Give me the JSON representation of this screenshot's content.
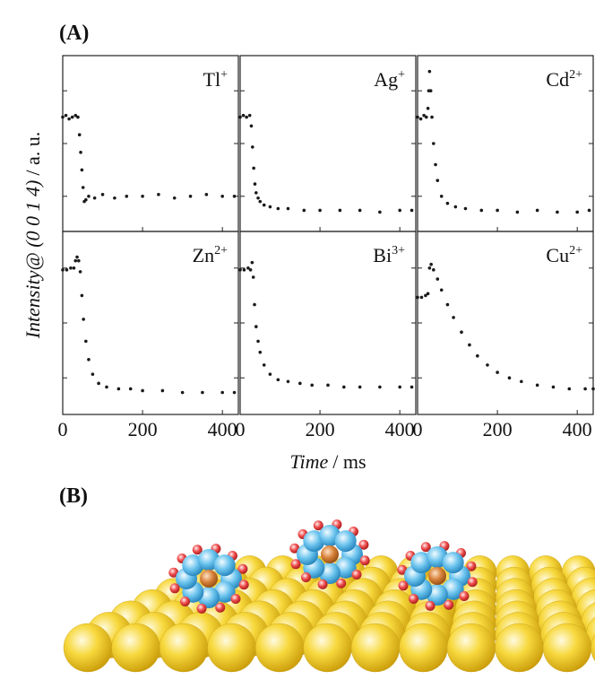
{
  "panel_a_label": "(A)",
  "panel_b_label": "(B)",
  "axes": {
    "ylabel_quantity": "Intensity@ (0 0 1 4)",
    "ylabel_unit": "/ a. u.",
    "xlabel_quantity": "Time",
    "xlabel_unit": "/ ms"
  },
  "chart_data": [
    {
      "type": "scatter",
      "label": {
        "ion": "Tl",
        "charge": "+"
      },
      "color": "#1a1a1a",
      "x": [
        0,
        8,
        16,
        24,
        32,
        38,
        42,
        45,
        48,
        51,
        54,
        58,
        65,
        80,
        100,
        130,
        160,
        200,
        240,
        280,
        320,
        360,
        400,
        430
      ],
      "y": [
        0.65,
        0.66,
        0.64,
        0.65,
        0.66,
        0.65,
        0.55,
        0.45,
        0.35,
        0.25,
        0.17,
        0.18,
        0.2,
        0.19,
        0.21,
        0.19,
        0.2,
        0.2,
        0.21,
        0.19,
        0.2,
        0.21,
        0.2,
        0.2
      ],
      "xlim": [
        0,
        440
      ],
      "xticks": [
        0,
        200,
        400
      ],
      "ylim": [
        0,
        1
      ],
      "yticks": [
        0.2,
        0.5,
        0.8
      ]
    },
    {
      "type": "scatter",
      "label": {
        "ion": "Ag",
        "charge": "+"
      },
      "color": "#1a1a1a",
      "x": [
        0,
        8,
        16,
        24,
        28,
        31,
        34,
        37,
        40,
        45,
        50,
        60,
        75,
        95,
        120,
        160,
        200,
        250,
        300,
        350,
        400,
        430
      ],
      "y": [
        0.65,
        0.66,
        0.65,
        0.66,
        0.6,
        0.48,
        0.36,
        0.27,
        0.22,
        0.19,
        0.17,
        0.15,
        0.14,
        0.13,
        0.13,
        0.12,
        0.12,
        0.12,
        0.12,
        0.11,
        0.12,
        0.12
      ],
      "xlim": [
        0,
        440
      ],
      "xticks": [
        0,
        200,
        400
      ],
      "ylim": [
        0,
        1
      ],
      "yticks": [
        0.2,
        0.5,
        0.8
      ]
    },
    {
      "type": "scatter",
      "label": {
        "ion": "Cd",
        "charge": "2+"
      },
      "color": "#1a1a1a",
      "x": [
        0,
        8,
        16,
        22,
        26,
        28,
        30,
        33,
        36,
        40,
        45,
        50,
        60,
        75,
        95,
        120,
        160,
        200,
        250,
        300,
        350,
        400,
        430
      ],
      "y": [
        0.65,
        0.64,
        0.66,
        0.65,
        0.7,
        0.8,
        0.91,
        0.8,
        0.65,
        0.5,
        0.38,
        0.29,
        0.2,
        0.16,
        0.14,
        0.13,
        0.12,
        0.12,
        0.11,
        0.12,
        0.11,
        0.11,
        0.12
      ],
      "xlim": [
        0,
        440
      ],
      "xticks": [
        0,
        200,
        400
      ],
      "ylim": [
        0,
        1
      ],
      "yticks": [
        0.2,
        0.5,
        0.8
      ]
    },
    {
      "type": "scatter",
      "label": {
        "ion": "Zn",
        "charge": "2+"
      },
      "color": "#1a1a1a",
      "x": [
        0,
        10,
        20,
        28,
        32,
        36,
        40,
        44,
        48,
        52,
        58,
        65,
        75,
        90,
        110,
        140,
        170,
        200,
        250,
        300,
        350,
        400,
        430
      ],
      "y": [
        0.79,
        0.79,
        0.8,
        0.8,
        0.84,
        0.86,
        0.84,
        0.78,
        0.65,
        0.52,
        0.4,
        0.3,
        0.22,
        0.17,
        0.15,
        0.14,
        0.14,
        0.13,
        0.13,
        0.12,
        0.12,
        0.12,
        0.12
      ],
      "xlim": [
        0,
        440
      ],
      "xticks": [
        0,
        200,
        400
      ],
      "ylim": [
        0,
        1
      ],
      "yticks": [
        0.2,
        0.5,
        0.8
      ]
    },
    {
      "type": "scatter",
      "label": {
        "ion": "Bi",
        "charge": "3+"
      },
      "color": "#1a1a1a",
      "x": [
        0,
        10,
        20,
        26,
        30,
        33,
        36,
        40,
        45,
        50,
        60,
        75,
        95,
        120,
        150,
        180,
        220,
        260,
        300,
        350,
        400,
        430
      ],
      "y": [
        0.79,
        0.79,
        0.8,
        0.79,
        0.83,
        0.75,
        0.6,
        0.48,
        0.4,
        0.34,
        0.27,
        0.22,
        0.19,
        0.18,
        0.17,
        0.16,
        0.16,
        0.15,
        0.15,
        0.15,
        0.15,
        0.15
      ],
      "xlim": [
        0,
        440
      ],
      "xticks": [
        0,
        200,
        400
      ],
      "ylim": [
        0,
        1
      ],
      "yticks": [
        0.2,
        0.5,
        0.8
      ]
    },
    {
      "type": "scatter",
      "label": {
        "ion": "Cu",
        "charge": "2+"
      },
      "color": "#1a1a1a",
      "x": [
        0,
        10,
        20,
        26,
        30,
        34,
        40,
        50,
        60,
        75,
        90,
        110,
        130,
        150,
        175,
        200,
        230,
        260,
        300,
        340,
        380,
        420,
        440
      ],
      "y": [
        0.64,
        0.64,
        0.65,
        0.66,
        0.8,
        0.82,
        0.79,
        0.74,
        0.68,
        0.6,
        0.53,
        0.45,
        0.38,
        0.32,
        0.27,
        0.23,
        0.2,
        0.18,
        0.16,
        0.15,
        0.14,
        0.14,
        0.14
      ],
      "xlim": [
        0,
        440
      ],
      "xticks": [
        0,
        200,
        400
      ],
      "ylim": [
        0,
        1
      ],
      "yticks": [
        0.2,
        0.5,
        0.8
      ]
    }
  ]
}
